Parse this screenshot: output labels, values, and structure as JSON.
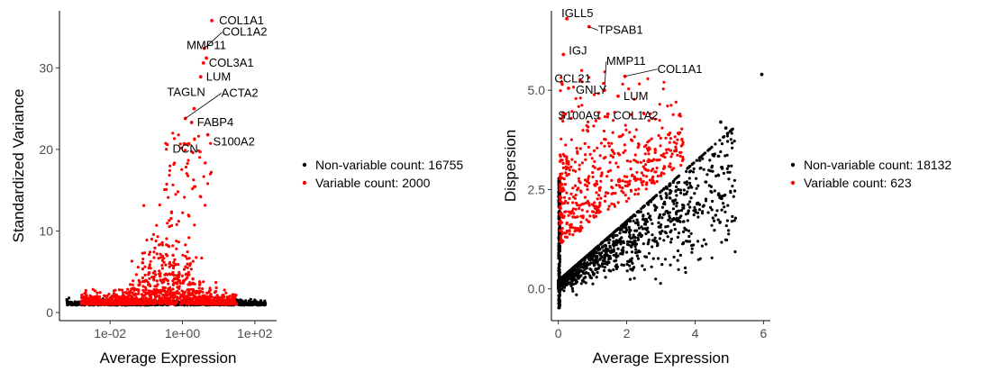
{
  "chart_data": [
    {
      "type": "scatter",
      "xlabel": "Average Expression",
      "ylabel": "Standardized Variance",
      "x_scale": "log10",
      "xlim": [
        0.0004,
        400
      ],
      "ylim": [
        -1,
        37
      ],
      "x_ticks": [
        0.01,
        1,
        100
      ],
      "x_tick_labels": [
        "1e-02",
        "1e+00",
        "1e+02"
      ],
      "y_ticks": [
        0,
        10,
        20,
        30
      ],
      "y_tick_labels": [
        "0",
        "10",
        "20",
        "30"
      ],
      "grid": false,
      "legend_position": "right",
      "series": [
        {
          "name": "Non-variable count: 16755",
          "color": "#000000"
        },
        {
          "name": "Variable count: 2000",
          "color": "#FF0000"
        }
      ],
      "labeled_points": [
        {
          "label": "COL1A1",
          "x": 6.5,
          "y": 35.8
        },
        {
          "label": "COL1A2",
          "x": 4.0,
          "y": 32.4
        },
        {
          "label": "MMP11",
          "x": 4.6,
          "y": 31.2
        },
        {
          "label": "COL3A1",
          "x": 3.8,
          "y": 30.6
        },
        {
          "label": "LUM",
          "x": 3.2,
          "y": 28.9
        },
        {
          "label": "TAGLN",
          "x": 2.1,
          "y": 25.0
        },
        {
          "label": "ACTA2",
          "x": 1.2,
          "y": 23.8
        },
        {
          "label": "FABP4",
          "x": 1.8,
          "y": 23.3
        },
        {
          "label": "S100A2",
          "x": 5.0,
          "y": 21.8
        },
        {
          "label": "DCN",
          "x": 1.5,
          "y": 20.7
        }
      ]
    },
    {
      "type": "scatter",
      "xlabel": "Average Expression",
      "ylabel": "Dispersion",
      "xlim": [
        -0.2,
        6.2
      ],
      "ylim": [
        -0.8,
        7.0
      ],
      "x_ticks": [
        0,
        2,
        4,
        6
      ],
      "x_tick_labels": [
        "0",
        "2",
        "4",
        "6"
      ],
      "y_ticks": [
        0,
        2.5,
        5.0
      ],
      "y_tick_labels": [
        "0.0",
        "2.5",
        "5.0"
      ],
      "grid": false,
      "legend_position": "right",
      "series": [
        {
          "name": "Non-variable count: 18132",
          "color": "#000000"
        },
        {
          "name": "Variable count: 623",
          "color": "#FF0000"
        }
      ],
      "labeled_points": [
        {
          "label": "IGLL5",
          "x": 0.25,
          "y": 6.8
        },
        {
          "label": "TPSAB1",
          "x": 0.9,
          "y": 6.6
        },
        {
          "label": "IGJ",
          "x": 0.15,
          "y": 5.9
        },
        {
          "label": "MMP11",
          "x": 1.35,
          "y": 5.0
        },
        {
          "label": "COL1A1",
          "x": 1.95,
          "y": 5.35
        },
        {
          "label": "CCL21",
          "x": 0.1,
          "y": 5.2
        },
        {
          "label": "GNLY",
          "x": 0.3,
          "y": 5.05
        },
        {
          "label": "LUM",
          "x": 1.75,
          "y": 4.85
        },
        {
          "label": "S100A9",
          "x": 0.2,
          "y": 4.4
        },
        {
          "label": "COL1A2",
          "x": 1.45,
          "y": 4.4
        }
      ]
    }
  ]
}
